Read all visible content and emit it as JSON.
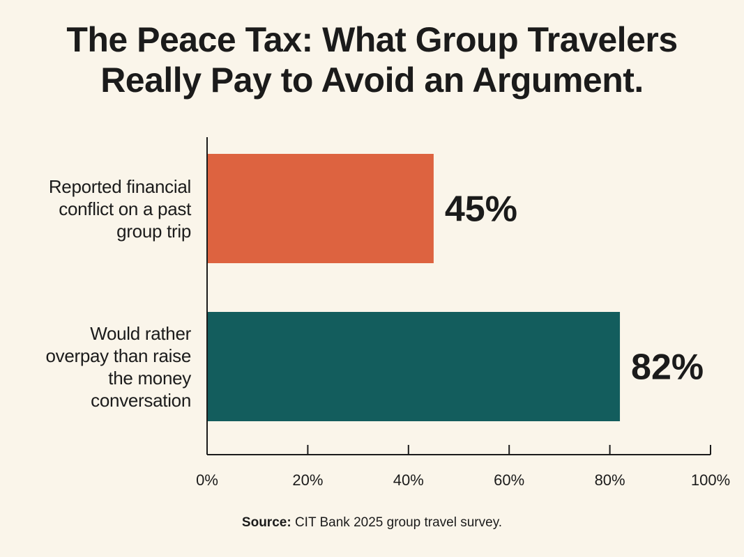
{
  "chart_data": {
    "type": "bar",
    "orientation": "horizontal",
    "title_lines": [
      "The Peace Tax: What Group Travelers",
      "Really Pay to Avoid an Argument."
    ],
    "categories": [
      {
        "label_lines": [
          "Reported financial",
          "conflict on a past",
          "group trip"
        ],
        "value": 45,
        "value_label": "45%",
        "color": "#dd6340"
      },
      {
        "label_lines": [
          "Would rather",
          "overpay than raise",
          "the money",
          "conversation"
        ],
        "value": 82,
        "value_label": "82%",
        "color": "#135d5d"
      }
    ],
    "xlim": [
      0,
      100
    ],
    "x_ticks": [
      0,
      20,
      40,
      60,
      80,
      100
    ],
    "x_tick_labels": [
      "0%",
      "20%",
      "40%",
      "60%",
      "80%",
      "100%"
    ],
    "grid": false,
    "xlabel": "",
    "ylabel": ""
  },
  "source": {
    "label": "Source:",
    "text": "CIT Bank 2025 group travel survey."
  }
}
